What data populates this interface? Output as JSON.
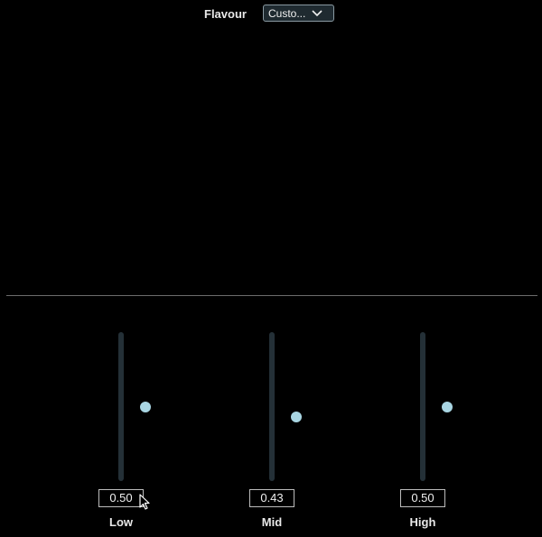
{
  "header": {
    "flavour_label": "Flavour",
    "flavour_value": "Custo...",
    "dropdown_icon": "chevron-down-icon"
  },
  "sliders": [
    {
      "label": "Low",
      "value": "0.50",
      "level": 0.5
    },
    {
      "label": "Mid",
      "value": "0.43",
      "level": 0.43
    },
    {
      "label": "High",
      "value": "0.50",
      "level": 0.5
    }
  ],
  "colors": {
    "background": "#000000",
    "track": "#243037",
    "thumb": "#a9d6e3",
    "select_bg": "#1f2a30"
  }
}
